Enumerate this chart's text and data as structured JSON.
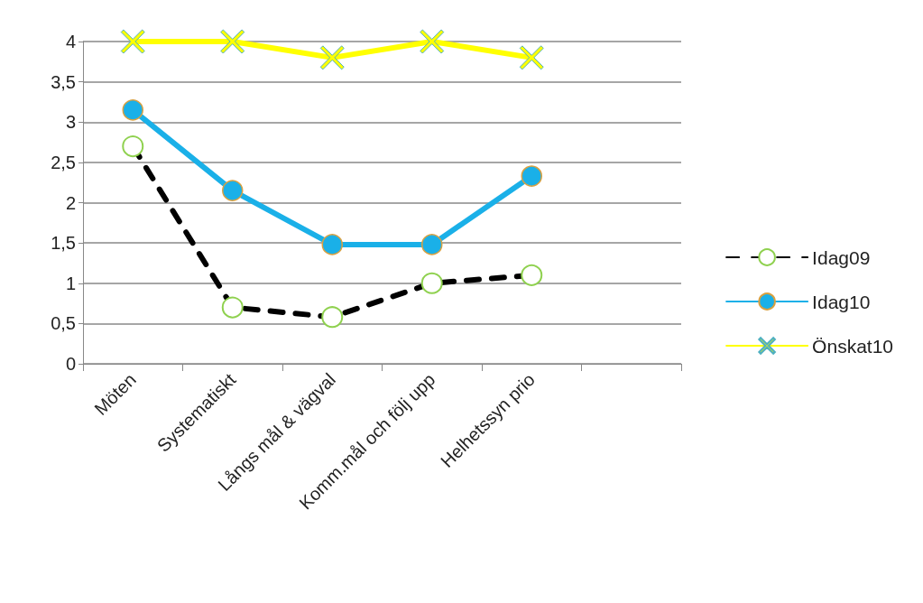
{
  "chart_data": {
    "type": "line",
    "categories": [
      "Möten",
      "Systematiskt",
      "Långs mål & vägval",
      "Komm.mål och följ upp",
      "Helhetssyn prio",
      null
    ],
    "series": [
      {
        "name": "Idag09",
        "color": "#000000",
        "marker": "circle",
        "line_style": "dashed",
        "values": [
          2.7,
          0.7,
          0.58,
          1.0,
          1.1,
          null
        ]
      },
      {
        "name": "Idag10",
        "color": "#1ab0e8",
        "marker": "circle",
        "line_style": "solid",
        "values": [
          3.15,
          2.15,
          1.48,
          1.48,
          2.33,
          null
        ]
      },
      {
        "name": "Önskat10",
        "color": "#ffff00",
        "marker": "cross",
        "line_style": "solid",
        "values": [
          4,
          4,
          3.8,
          4,
          3.8,
          null
        ]
      }
    ],
    "ylim": [
      0,
      4
    ],
    "yticks": [
      {
        "value": 0,
        "label": "0"
      },
      {
        "value": 0.5,
        "label": "0,5"
      },
      {
        "value": 1,
        "label": "1"
      },
      {
        "value": 1.5,
        "label": "1,5"
      },
      {
        "value": 2,
        "label": "2"
      },
      {
        "value": 2.5,
        "label": "2,5"
      },
      {
        "value": 3,
        "label": "3"
      },
      {
        "value": 3.5,
        "label": "3,5"
      },
      {
        "value": 4,
        "label": "4"
      }
    ],
    "grid": "y",
    "legend": "right"
  }
}
